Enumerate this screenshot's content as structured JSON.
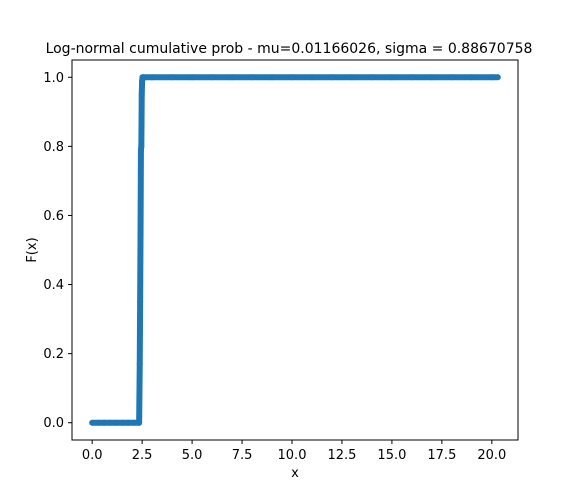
{
  "chart_data": {
    "type": "scatter",
    "title": "Log-normal cumulative prob - mu=0.01166026, sigma = 0.88670758",
    "xlabel": "x",
    "ylabel": "F(x)",
    "xlim": [
      -1.01,
      21.31
    ],
    "ylim": [
      -0.05,
      1.05
    ],
    "xticks": [
      0.0,
      2.5,
      5.0,
      7.5,
      10.0,
      12.5,
      15.0,
      17.5,
      20.0
    ],
    "xtick_labels": [
      "0.0",
      "2.5",
      "5.0",
      "7.5",
      "10.0",
      "12.5",
      "15.0",
      "17.5",
      "20.0"
    ],
    "yticks": [
      0.0,
      0.2,
      0.4,
      0.6,
      0.8,
      1.0
    ],
    "ytick_labels": [
      "0.0",
      "0.2",
      "0.4",
      "0.6",
      "0.8",
      "1.0"
    ],
    "grid": false,
    "color": "#1f77b4",
    "series": [
      {
        "x": [
          0.0,
          0.3,
          0.6,
          0.9,
          1.2,
          1.5,
          1.8,
          2.1,
          2.35,
          2.38,
          2.4,
          2.42,
          2.44,
          2.46,
          2.48,
          2.5,
          2.52,
          2.55,
          3.0,
          4.0,
          5.0,
          6.0,
          7.0,
          8.0,
          9.0,
          10.0,
          11.0,
          12.0,
          13.0,
          14.0,
          15.0,
          16.0,
          17.0,
          18.0,
          19.0,
          20.0,
          20.3
        ],
        "y": [
          0.0,
          0.0,
          0.0,
          0.0,
          0.0,
          0.0,
          0.0,
          0.0,
          0.0,
          0.17,
          0.35,
          0.55,
          0.79,
          0.8,
          0.95,
          0.99,
          1.0,
          1.0,
          1.0,
          1.0,
          1.0,
          1.0,
          1.0,
          1.0,
          1.0,
          1.0,
          1.0,
          1.0,
          1.0,
          1.0,
          1.0,
          1.0,
          1.0,
          1.0,
          1.0,
          1.0,
          1.0
        ]
      }
    ]
  }
}
